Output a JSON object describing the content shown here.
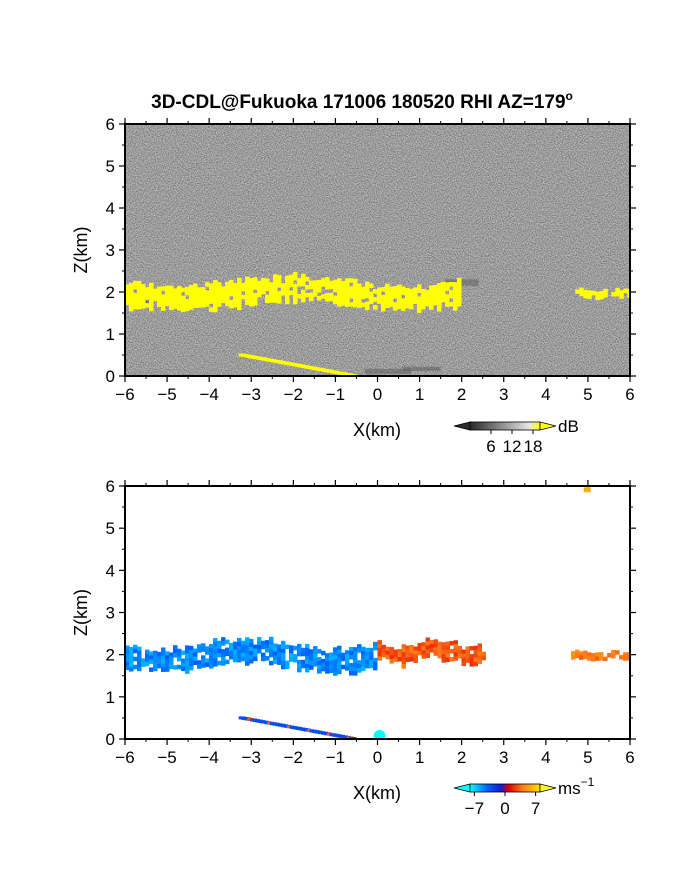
{
  "title": "3D-CDL@Fukuoka 171006 180520 RHI AZ=179",
  "title_degree_mark": "o",
  "chart_data": [
    {
      "type": "heatmap",
      "name": "reflectivity",
      "xlabel": "X(km)",
      "ylabel": "Z(km)",
      "xlim": [
        -6,
        6
      ],
      "ylim": [
        0,
        6
      ],
      "x_ticks": [
        "−6",
        "−5",
        "−4",
        "−3",
        "−2",
        "−1",
        "0",
        "1",
        "2",
        "3",
        "4",
        "5",
        "6"
      ],
      "y_ticks": [
        "0",
        "1",
        "2",
        "3",
        "4",
        "5",
        "6"
      ],
      "background": "noise, dark gray",
      "colorbar": {
        "unit": "dB",
        "ticks": [
          "6",
          "12",
          "18"
        ],
        "range": [
          0,
          20
        ]
      },
      "features": [
        {
          "label": "cloud layer",
          "z_km": [
            1.6,
            2.4
          ],
          "x_km": [
            -6.0,
            1.9
          ],
          "color": "#ffff00"
        },
        {
          "label": "cloud fragment",
          "z_km": [
            1.9,
            2.1
          ],
          "x_km": [
            4.7,
            6.0
          ],
          "color": "#ffff00"
        },
        {
          "label": "surface streak",
          "x_km": [
            -3.3,
            -0.6
          ],
          "z_km": [
            0.5,
            0.0
          ],
          "color": "#ffff00"
        }
      ]
    },
    {
      "type": "heatmap",
      "name": "doppler velocity",
      "xlabel": "X(km)",
      "ylabel": "Z(km)",
      "xlim": [
        -6,
        6
      ],
      "ylim": [
        0,
        6
      ],
      "x_ticks": [
        "−6",
        "−5",
        "−4",
        "−3",
        "−2",
        "−1",
        "0",
        "1",
        "2",
        "3",
        "4",
        "5",
        "6"
      ],
      "y_ticks": [
        "0",
        "1",
        "2",
        "3",
        "4",
        "5",
        "6"
      ],
      "background": "#ffffff",
      "colorbar": {
        "unit": "ms",
        "unit_exponent": "−1",
        "ticks": [
          "−7",
          "0",
          "7"
        ],
        "range": [
          -8,
          8
        ]
      },
      "features": [
        {
          "label": "cloud layer west",
          "z_km": [
            1.6,
            2.4
          ],
          "x_km": [
            -6.0,
            -0.1
          ],
          "velocity_ms": -5
        },
        {
          "label": "cloud layer east",
          "z_km": [
            1.8,
            2.4
          ],
          "x_km": [
            0.0,
            2.5
          ],
          "velocity_ms": 3
        },
        {
          "label": "cloud fragment",
          "z_km": [
            1.9,
            2.1
          ],
          "x_km": [
            4.6,
            6.0
          ],
          "velocity_ms": 4
        },
        {
          "label": "surface streak",
          "x_km": [
            -3.3,
            -0.6
          ],
          "z_km": [
            0.5,
            0.0
          ],
          "velocity_ms": -3
        },
        {
          "label": "isolated speck",
          "x_km": [
            4.9
          ],
          "z_km": [
            5.9
          ],
          "velocity_ms": 6
        }
      ]
    }
  ]
}
